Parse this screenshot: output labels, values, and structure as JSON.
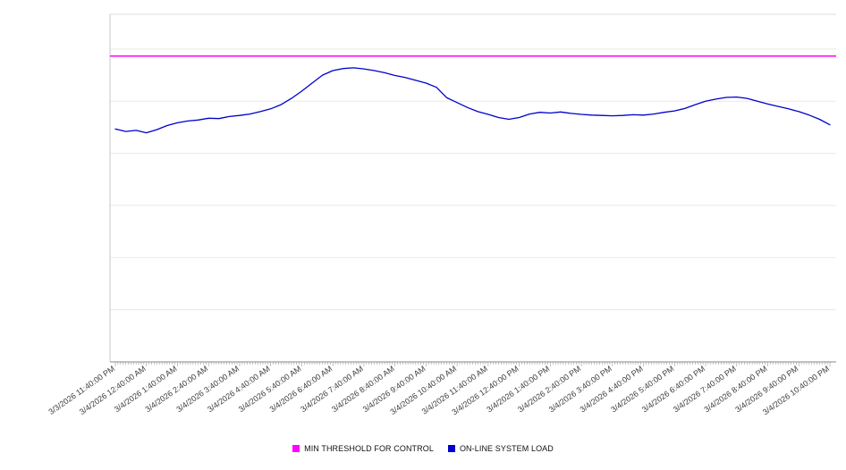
{
  "chart_data": {
    "type": "line",
    "title": "",
    "xlabel": "",
    "ylabel": "",
    "ylim": [
      0,
      100
    ],
    "grid_values": [
      15,
      30,
      45,
      60,
      75,
      90
    ],
    "grid": "horizontal",
    "legend_position": "bottom",
    "minor_tick_minutes": 5,
    "points_interval_minutes": 20,
    "x_labels": [
      "3/3/2026 11:40:00 PM",
      "3/4/2026 12:40:00 AM",
      "3/4/2026 1:40:00 AM",
      "3/4/2026 2:40:00 AM",
      "3/4/2026 3:40:00 AM",
      "3/4/2026 4:40:00 AM",
      "3/4/2026 5:40:00 AM",
      "3/4/2026 6:40:00 AM",
      "3/4/2026 7:40:00 AM",
      "3/4/2026 8:40:00 AM",
      "3/4/2026 9:40:00 AM",
      "3/4/2026 10:40:00 AM",
      "3/4/2026 11:40:00 AM",
      "3/4/2026 12:40:00 PM",
      "3/4/2026 1:40:00 PM",
      "3/4/2026 2:40:00 PM",
      "3/4/2026 3:40:00 PM",
      "3/4/2026 4:40:00 PM",
      "3/4/2026 5:40:00 PM",
      "3/4/2026 6:40:00 PM",
      "3/4/2026 7:40:00 PM",
      "3/4/2026 8:40:00 PM",
      "3/4/2026 9:40:00 PM",
      "3/4/2026 10:40:00 PM"
    ],
    "series": [
      {
        "name": "MIN THRESHOLD FOR CONTROL",
        "type": "threshold-line",
        "color": "#ff00ff",
        "value": 88
      },
      {
        "name": "ON-LINE SYSTEM LOAD",
        "type": "line",
        "color": "#0000cd",
        "values": [
          67.0,
          66.3,
          66.6,
          65.9,
          66.8,
          68.0,
          68.8,
          69.3,
          69.6,
          70.1,
          70.0,
          70.6,
          70.9,
          71.3,
          72.0,
          72.8,
          74.0,
          75.8,
          77.9,
          80.2,
          82.5,
          83.8,
          84.4,
          84.6,
          84.3,
          83.8,
          83.2,
          82.4,
          81.8,
          81.0,
          80.2,
          79.0,
          76.0,
          74.6,
          73.2,
          72.0,
          71.2,
          70.3,
          69.8,
          70.3,
          71.3,
          71.8,
          71.6,
          71.9,
          71.5,
          71.2,
          71.0,
          70.9,
          70.8,
          70.9,
          71.1,
          71.0,
          71.3,
          71.8,
          72.2,
          72.9,
          74.0,
          75.0,
          75.6,
          76.1,
          76.2,
          75.8,
          75.0,
          74.2,
          73.5,
          72.8,
          72.0,
          71.0,
          69.8,
          68.2
        ]
      }
    ]
  },
  "colors": {
    "gridline": "#e9e9e9",
    "plot_top_border": "#dcdcdc",
    "y_axis": "#c8c8c8",
    "x_axis": "#888888",
    "tick": "#999999",
    "axis_label_text": "#3d3d3d"
  }
}
